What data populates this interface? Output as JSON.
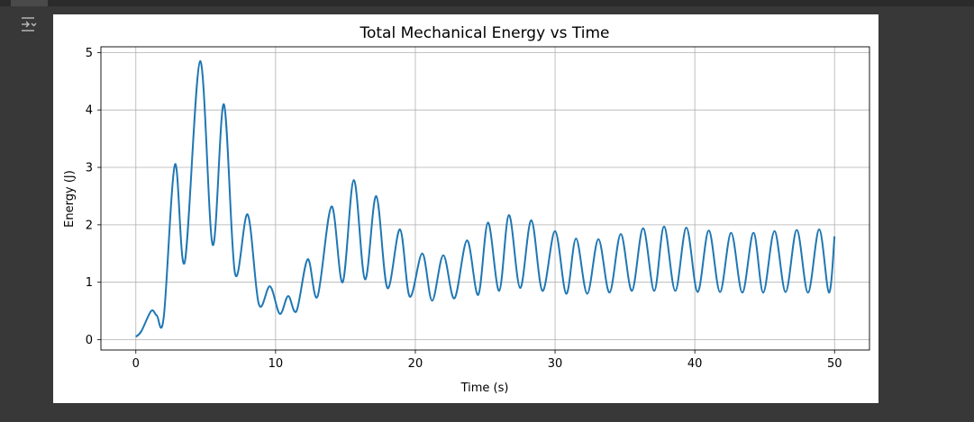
{
  "output": {
    "toggle_icon": "output-toggle-icon"
  },
  "chart_data": {
    "type": "line",
    "title": "Total Mechanical Energy vs Time",
    "xlabel": "Time (s)",
    "ylabel": "Energy (J)",
    "xlim": [
      -2.5,
      52.5
    ],
    "ylim": [
      -0.18,
      5.1
    ],
    "xticks": [
      0,
      10,
      20,
      30,
      40,
      50
    ],
    "yticks": [
      0,
      1,
      2,
      3,
      4,
      5
    ],
    "grid": true,
    "line_color": "#1f77b4",
    "series": [
      {
        "x": [
          0,
          0.4,
          1.1,
          1.5,
          2.0,
          2.8,
          3.5,
          4.6,
          5.5,
          6.3,
          7.1,
          8.0,
          8.8,
          9.6,
          10.3,
          10.9,
          11.5,
          12.3,
          13.0,
          14.0,
          14.8,
          15.6,
          16.4,
          17.2,
          18.0,
          18.9,
          19.6,
          20.5,
          21.2,
          22.0,
          22.8,
          23.7,
          24.5,
          25.2,
          26.0,
          26.7,
          27.5,
          28.3,
          29.1,
          30.0,
          30.8,
          31.5,
          32.3,
          33.1,
          33.9,
          34.7,
          35.5,
          36.3,
          37.1,
          37.8,
          38.6,
          39.4,
          40.2,
          41.0,
          41.8,
          42.6,
          43.4,
          44.2,
          44.9,
          45.7,
          46.5,
          47.3,
          48.1,
          48.9,
          49.6,
          50.0
        ],
        "y": [
          0.05,
          0.15,
          0.5,
          0.42,
          0.4,
          3.05,
          1.35,
          4.85,
          1.65,
          4.1,
          1.15,
          2.18,
          0.62,
          0.93,
          0.45,
          0.76,
          0.5,
          1.4,
          0.75,
          2.32,
          1.0,
          2.78,
          1.05,
          2.5,
          0.9,
          1.92,
          0.75,
          1.5,
          0.68,
          1.47,
          0.72,
          1.73,
          0.78,
          2.04,
          0.85,
          2.17,
          0.9,
          2.08,
          0.85,
          1.89,
          0.8,
          1.76,
          0.8,
          1.75,
          0.82,
          1.84,
          0.85,
          1.94,
          0.85,
          1.97,
          0.85,
          1.95,
          0.83,
          1.9,
          0.83,
          1.86,
          0.82,
          1.86,
          0.82,
          1.89,
          0.83,
          1.91,
          0.82,
          1.92,
          0.82,
          1.8
        ]
      }
    ]
  }
}
